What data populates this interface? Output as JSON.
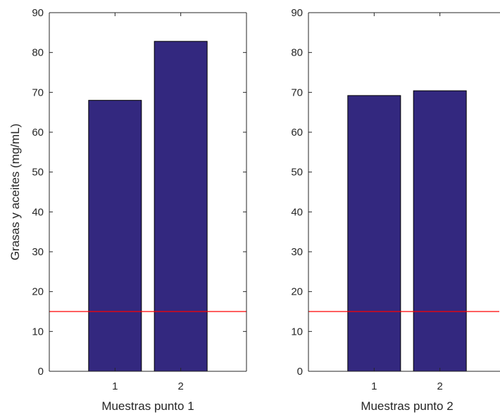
{
  "chart_data": [
    {
      "type": "bar",
      "categories": [
        "1",
        "2"
      ],
      "values": [
        68,
        82.8
      ],
      "xlabel": "Muestras punto 1",
      "ylabel": "Grasas y aceites (mg/mL)",
      "ylim": [
        0,
        90
      ],
      "yticks": [
        "0",
        "10",
        "20",
        "30",
        "40",
        "50",
        "60",
        "70",
        "80",
        "90"
      ],
      "reference_line": 15,
      "bar_color": "#33287f",
      "reference_line_color": "#ff0000",
      "grid": false
    },
    {
      "type": "bar",
      "categories": [
        "1",
        "2"
      ],
      "values": [
        69.2,
        70.4
      ],
      "xlabel": "Muestras punto 2",
      "ylabel": "",
      "ylim": [
        0,
        90
      ],
      "yticks": [
        "0",
        "10",
        "20",
        "30",
        "40",
        "50",
        "60",
        "70",
        "80",
        "90"
      ],
      "reference_line": 15,
      "bar_color": "#33287f",
      "reference_line_color": "#ff0000",
      "grid": false
    }
  ]
}
